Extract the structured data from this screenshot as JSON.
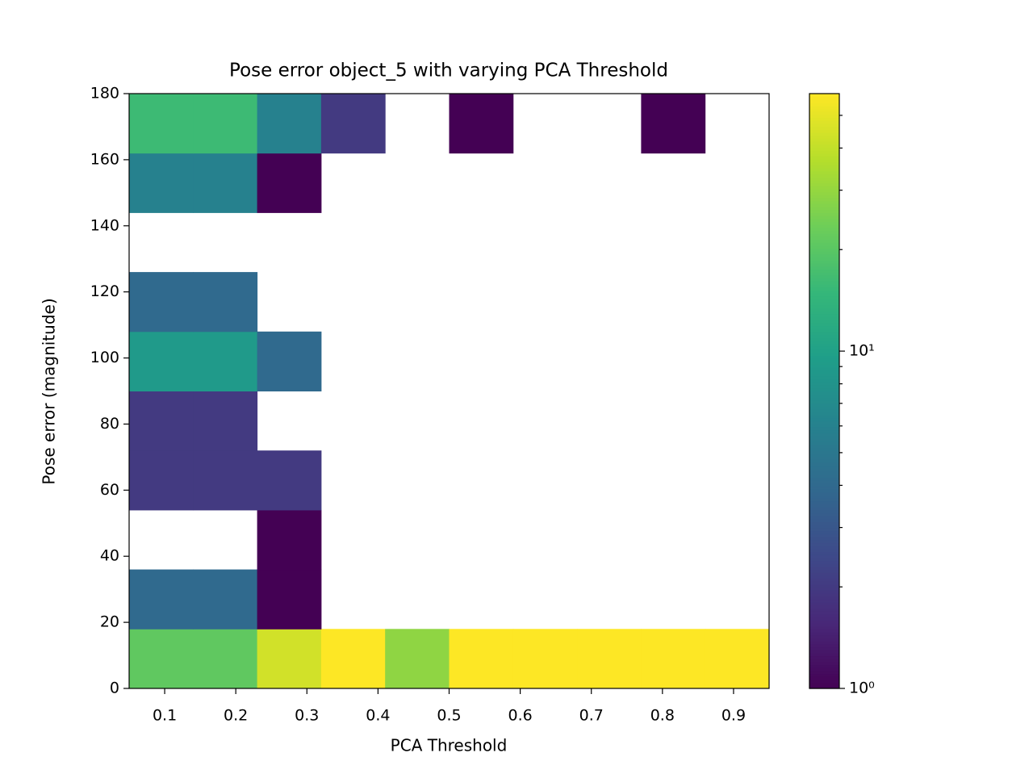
{
  "chart_data": {
    "type": "hist2d",
    "title": "Pose error object_5 with varying PCA Threshold",
    "xlabel": "PCA Threshold",
    "ylabel": "Pose error (magnitude)",
    "xbins": [
      0.05,
      0.14,
      0.23,
      0.32,
      0.41,
      0.5,
      0.59,
      0.68,
      0.77,
      0.86,
      0.95
    ],
    "ybins": [
      0,
      18,
      36,
      54,
      72,
      90,
      108,
      126,
      144,
      162,
      180
    ],
    "z": [
      [
        21,
        21,
        44,
        58,
        29,
        58,
        58,
        58,
        58,
        58
      ],
      [
        4,
        4,
        1,
        null,
        null,
        null,
        null,
        null,
        null,
        null
      ],
      [
        null,
        null,
        1,
        null,
        null,
        null,
        null,
        null,
        null,
        null
      ],
      [
        2,
        2,
        2,
        null,
        null,
        null,
        null,
        null,
        null,
        null
      ],
      [
        2,
        2,
        null,
        null,
        null,
        null,
        null,
        null,
        null,
        null
      ],
      [
        9,
        9,
        4,
        null,
        null,
        null,
        null,
        null,
        null,
        null
      ],
      [
        4,
        4,
        null,
        null,
        null,
        null,
        null,
        null,
        null,
        null
      ],
      [
        null,
        null,
        null,
        null,
        null,
        null,
        null,
        null,
        null,
        null
      ],
      [
        6,
        6,
        1,
        null,
        null,
        null,
        null,
        null,
        null,
        null
      ],
      [
        16,
        16,
        6,
        2,
        null,
        1,
        null,
        null,
        1,
        null
      ]
    ],
    "xlim": [
      0.05,
      0.95
    ],
    "ylim": [
      0,
      180
    ],
    "xticks": [
      0.1,
      0.2,
      0.3,
      0.4,
      0.5,
      0.6,
      0.7,
      0.8,
      0.9
    ],
    "yticks": [
      0,
      20,
      40,
      60,
      80,
      100,
      120,
      140,
      160,
      180
    ],
    "color_scale": "log",
    "clim": [
      1,
      58
    ],
    "cticks": [
      {
        "value": 1,
        "label": "10⁰"
      },
      {
        "value": 10,
        "label": "10¹"
      }
    ],
    "cminor_ticks": [
      2,
      3,
      4,
      5,
      6,
      7,
      8,
      9,
      20,
      30,
      40,
      50
    ],
    "colormap": [
      "#440154",
      "#482878",
      "#3e4989",
      "#31688e",
      "#26828e",
      "#1f9e89",
      "#35b779",
      "#6ece58",
      "#b5de2b",
      "#fde725"
    ]
  }
}
